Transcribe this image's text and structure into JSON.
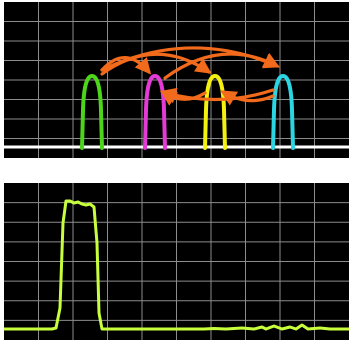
{
  "colors": {
    "background": "#000000",
    "grid": "#8c8c8c",
    "baseline": "#ffffff",
    "arrow": "#f26a1b",
    "trace_bottom": "#c8ff3c"
  },
  "top_panel": {
    "channels": [
      {
        "name": "green-channel",
        "color": "#4cd51a"
      },
      {
        "name": "magenta-channel",
        "color": "#e43ad6"
      },
      {
        "name": "yellow-channel",
        "color": "#f4f00f"
      },
      {
        "name": "cyan-channel",
        "color": "#2bd6e2"
      }
    ],
    "arrows": [
      {
        "from": "green-channel",
        "to": "cyan-channel"
      },
      {
        "from": "green-channel",
        "to": "yellow-channel"
      },
      {
        "from": "magenta-channel",
        "to": "cyan-channel"
      },
      {
        "from": "green-channel",
        "to": "magenta-channel"
      },
      {
        "from": "yellow-channel",
        "to": "magenta-channel"
      },
      {
        "from": "cyan-channel",
        "to": "yellow-channel"
      },
      {
        "from": "cyan-channel",
        "to": "magenta-channel"
      }
    ]
  },
  "bottom_panel": {
    "trace": {
      "color": "#c8ff3c",
      "shape": "single flat-top pulse near left, low noise afterwards"
    }
  }
}
